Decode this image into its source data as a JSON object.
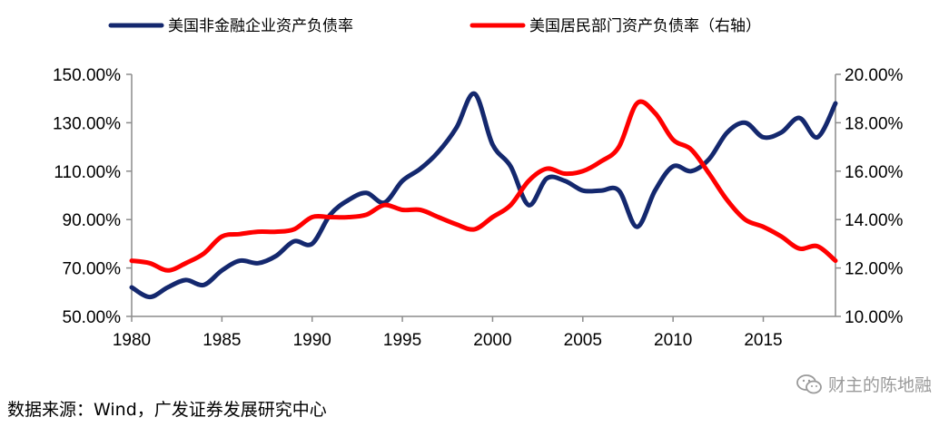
{
  "chart_data": {
    "type": "line",
    "legend": {
      "placement": "top"
    },
    "x": {
      "min": 1980,
      "max": 2019,
      "ticks": [
        "1980",
        "1985",
        "1990",
        "1995",
        "2000",
        "2005",
        "2010",
        "2015"
      ]
    },
    "y_left": {
      "min": 50,
      "max": 150,
      "ticks": [
        "50.00%",
        "70.00%",
        "90.00%",
        "110.00%",
        "130.00%",
        "150.00%"
      ]
    },
    "y_right": {
      "min": 10,
      "max": 20,
      "ticks": [
        "10.00%",
        "12.00%",
        "14.00%",
        "16.00%",
        "18.00%",
        "20.00%"
      ]
    },
    "series": [
      {
        "name": "美国非金融企业资产负债率",
        "axis": "left",
        "color": "#14286e",
        "x": [
          1980,
          1981,
          1982,
          1983,
          1984,
          1985,
          1986,
          1987,
          1988,
          1989,
          1990,
          1991,
          1992,
          1993,
          1994,
          1995,
          1996,
          1997,
          1998,
          1999,
          2000,
          2001,
          2002,
          2003,
          2004,
          2005,
          2006,
          2007,
          2008,
          2009,
          2010,
          2011,
          2012,
          2013,
          2014,
          2015,
          2016,
          2017,
          2018,
          2019
        ],
        "values": [
          62,
          58,
          62,
          65,
          63,
          69,
          73,
          72,
          75,
          81,
          80,
          92,
          98,
          101,
          97,
          106,
          111,
          118,
          128,
          142,
          121,
          112,
          96,
          107,
          106,
          102,
          102,
          102,
          87,
          102,
          112,
          110,
          115,
          126,
          130,
          124,
          126,
          132,
          124,
          138
        ]
      },
      {
        "name": "美国居民部门资产负债率（右轴）",
        "axis": "right",
        "color": "#ff0000",
        "x": [
          1980,
          1981,
          1982,
          1983,
          1984,
          1985,
          1986,
          1987,
          1988,
          1989,
          1990,
          1991,
          1992,
          1993,
          1994,
          1995,
          1996,
          1997,
          1998,
          1999,
          2000,
          2001,
          2002,
          2003,
          2004,
          2005,
          2006,
          2007,
          2008,
          2009,
          2010,
          2011,
          2012,
          2013,
          2014,
          2015,
          2016,
          2017,
          2018,
          2019
        ],
        "values": [
          12.3,
          12.2,
          11.9,
          12.2,
          12.6,
          13.3,
          13.4,
          13.5,
          13.5,
          13.6,
          14.1,
          14.1,
          14.1,
          14.2,
          14.6,
          14.4,
          14.4,
          14.1,
          13.8,
          13.6,
          14.1,
          14.6,
          15.6,
          16.1,
          15.9,
          16.0,
          16.4,
          17.0,
          18.8,
          18.4,
          17.3,
          16.9,
          15.9,
          14.8,
          14.0,
          13.7,
          13.3,
          12.8,
          12.9,
          12.3
        ]
      }
    ]
  },
  "source_text": "数据来源：Wind，广发证券发展研究中心",
  "watermark_text": "财主的陈地融",
  "watermark_icon": "wechat-icon"
}
